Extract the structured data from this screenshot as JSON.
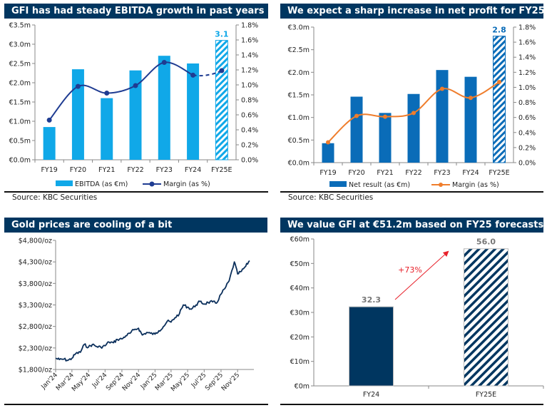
{
  "colors": {
    "title_bar": "#003660",
    "ebitda": "#10a8e8",
    "ebitda_margin": "#1f3c92",
    "net_result": "#0a6cb8",
    "net_margin": "#ef7d2c",
    "gold": "#0b2f5b",
    "valuation": "#003660",
    "annotation": "#e8202a"
  },
  "chart_data": [
    {
      "type": "bar",
      "title": "GFI has had steady EBITDA growth in past years",
      "categories": [
        "FY19",
        "FY20",
        "FY21",
        "FY22",
        "FY23",
        "FY24",
        "FY25E"
      ],
      "series": [
        {
          "name": "EBITDA (as €m)",
          "kind": "bar",
          "axis": "left",
          "values": [
            0.85,
            2.35,
            1.6,
            2.32,
            2.7,
            2.5,
            3.1
          ],
          "hatched_last": true
        },
        {
          "name": "Margin (as %)",
          "kind": "line",
          "axis": "right",
          "values": [
            0.53,
            0.98,
            0.89,
            0.99,
            1.3,
            1.13,
            1.19
          ],
          "dashed_last_segment": true
        }
      ],
      "data_labels": [
        {
          "category": "FY25E",
          "text": "3.1"
        }
      ],
      "yticks_left": [
        "€0.0m",
        "€0.5m",
        "€1.0m",
        "€1.5m",
        "€2.0m",
        "€2.5m",
        "€3.0m",
        "€3.5m"
      ],
      "yticks_right": [
        "0.0%",
        "0.2%",
        "0.4%",
        "0.6%",
        "0.8%",
        "1.0%",
        "1.2%",
        "1.4%",
        "1.6%",
        "1.8%"
      ],
      "ylim_left": [
        0,
        3.5
      ],
      "ylim_right": [
        0,
        1.8
      ],
      "legend": "bottom",
      "grid": false,
      "source": "Source: KBC Securities"
    },
    {
      "type": "bar",
      "title": "We expect a sharp increase in net profit for FY25",
      "categories": [
        "FY19",
        "FY20",
        "FY21",
        "FY22",
        "FY23",
        "FY24",
        "FY25E"
      ],
      "series": [
        {
          "name": "Net result (as €m)",
          "kind": "bar",
          "axis": "left",
          "values": [
            0.43,
            1.46,
            1.1,
            1.52,
            2.05,
            1.9,
            2.8
          ],
          "hatched_last": true
        },
        {
          "name": "Margin (as %)",
          "kind": "line",
          "axis": "right",
          "values": [
            0.27,
            0.62,
            0.61,
            0.66,
            0.98,
            0.86,
            1.07
          ]
        }
      ],
      "data_labels": [
        {
          "category": "FY25E",
          "text": "2.8"
        }
      ],
      "yticks_left": [
        "€0.0m",
        "€0.5m",
        "€1.0m",
        "€1.5m",
        "€2.0m",
        "€2.5m",
        "€3.0m"
      ],
      "yticks_right": [
        "0.0%",
        "0.2%",
        "0.4%",
        "0.6%",
        "0.8%",
        "1.0%",
        "1.2%",
        "1.4%",
        "1.6%",
        "1.8%"
      ],
      "ylim_left": [
        0,
        3.0
      ],
      "ylim_right": [
        0,
        1.8
      ],
      "legend": "bottom",
      "grid": false,
      "source": "Source: KBC Securities"
    },
    {
      "type": "line",
      "title": "Gold prices are cooling of a bit",
      "x": [
        "2024-01-01",
        "2024-01-15",
        "2024-02-01",
        "2024-02-15",
        "2024-03-01",
        "2024-03-15",
        "2024-04-01",
        "2024-04-15",
        "2024-05-01",
        "2024-05-15",
        "2024-06-01",
        "2024-06-15",
        "2024-07-01",
        "2024-07-15",
        "2024-08-01",
        "2024-08-15",
        "2024-09-01",
        "2024-09-15",
        "2024-10-01",
        "2024-10-15",
        "2024-11-01",
        "2024-11-15",
        "2024-12-01",
        "2024-12-15",
        "2025-01-01",
        "2025-01-15",
        "2025-02-01",
        "2025-02-15",
        "2025-03-01",
        "2025-03-15",
        "2025-04-01",
        "2025-04-15",
        "2025-05-01",
        "2025-05-15",
        "2025-06-01",
        "2025-06-15",
        "2025-07-01",
        "2025-07-15",
        "2025-08-01",
        "2025-08-15",
        "2025-09-01",
        "2025-09-15",
        "2025-10-01",
        "2025-10-20",
        "2025-11-01",
        "2025-11-15",
        "2025-12-01",
        "2025-12-15"
      ],
      "values": [
        2060,
        2030,
        2040,
        2010,
        2060,
        2170,
        2200,
        2380,
        2320,
        2380,
        2330,
        2320,
        2350,
        2440,
        2420,
        2500,
        2510,
        2580,
        2640,
        2720,
        2760,
        2600,
        2660,
        2640,
        2620,
        2700,
        2800,
        2920,
        2900,
        3000,
        3100,
        3300,
        3250,
        3200,
        3300,
        3380,
        3320,
        3360,
        3370,
        3340,
        3550,
        3680,
        3860,
        4300,
        4020,
        4080,
        4200,
        4330
      ],
      "yticks": [
        "$1,800/oz",
        "$2,300/oz",
        "$2,800/oz",
        "$3,300/oz",
        "$3,800/oz",
        "$4,300/oz",
        "$4,800/oz"
      ],
      "ylim": [
        1800,
        4800
      ],
      "xticks": [
        "Jan'24",
        "Mar'24",
        "May'24",
        "Jul'24",
        "Sep'24",
        "Nov'24",
        "Jan'25",
        "Mar'25",
        "May'25",
        "Jul'25",
        "Sep'25",
        "Nov'25"
      ],
      "grid": false
    },
    {
      "type": "bar",
      "title": "We value GFI at €51.2m based on FY25 forecasts",
      "categories": [
        "FY24",
        "FY25E"
      ],
      "values": [
        32.3,
        56.0
      ],
      "data_labels": [
        "32.3",
        "56.0"
      ],
      "hatched_last": true,
      "annotation": "+73%",
      "yticks": [
        "€0m",
        "€10m",
        "€20m",
        "€30m",
        "€40m",
        "€50m",
        "€60m"
      ],
      "ylim": [
        0,
        60
      ],
      "grid": false
    }
  ]
}
